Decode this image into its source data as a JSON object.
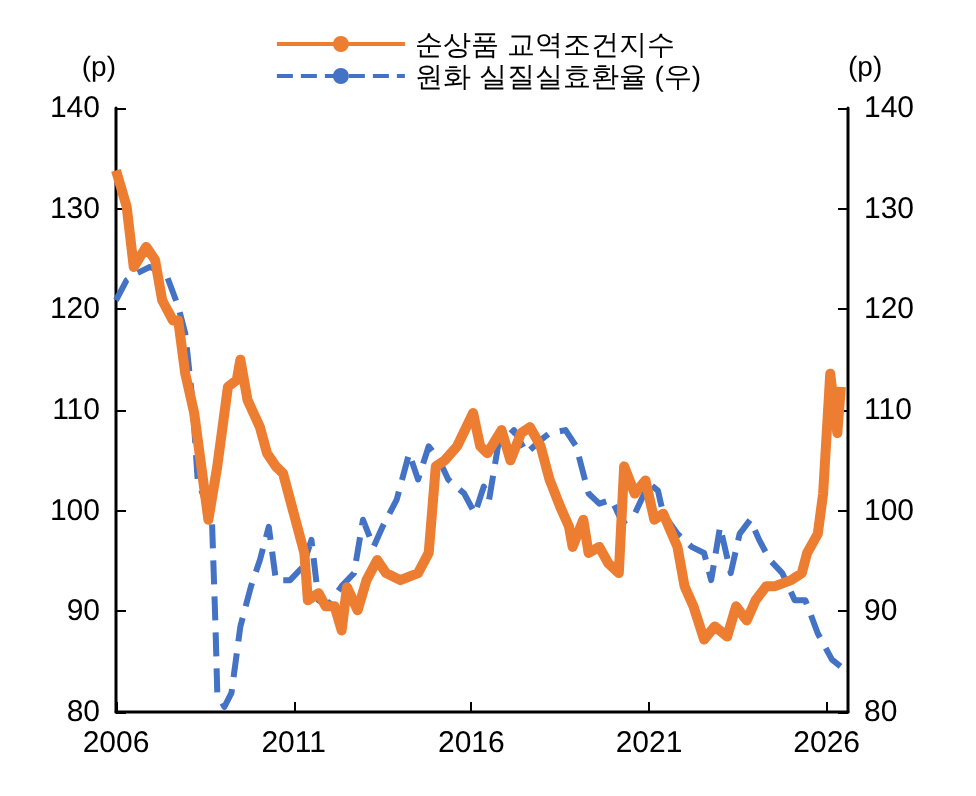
{
  "chart_data": {
    "type": "line",
    "ylabel": "(p)",
    "y2label": "(p)",
    "xlim": [
      2006,
      2026.6
    ],
    "xticks": [
      2006,
      2011,
      2016,
      2021,
      2026
    ],
    "ylim": [
      80,
      140
    ],
    "yticks": [
      80,
      90,
      100,
      110,
      120,
      130,
      140
    ],
    "y2lim": [
      80,
      140
    ],
    "y2ticks": [
      80,
      90,
      100,
      110,
      120,
      130,
      140
    ],
    "legend": "top",
    "grid": false,
    "marker": "none",
    "series": [
      {
        "name": "순상품 교역조건지수",
        "color": "#ed7d31",
        "line_style": "solid",
        "x": [
          2006.0,
          2006.3,
          2006.5,
          2006.85,
          2007.1,
          2007.3,
          2007.6,
          2007.75,
          2007.95,
          2008.2,
          2008.6,
          2008.85,
          2009.15,
          2009.4,
          2009.5,
          2009.7,
          2010.05,
          2010.25,
          2010.5,
          2010.7,
          2011.05,
          2011.3,
          2011.4,
          2011.7,
          2011.9,
          2012.15,
          2012.35,
          2012.5,
          2012.8,
          2013.05,
          2013.35,
          2013.6,
          2014.0,
          2014.5,
          2014.8,
          2015.0,
          2015.25,
          2015.6,
          2016.05,
          2016.25,
          2016.45,
          2016.85,
          2017.1,
          2017.4,
          2017.65,
          2017.95,
          2018.2,
          2018.5,
          2018.75,
          2018.85,
          2019.15,
          2019.3,
          2019.6,
          2019.85,
          2020.15,
          2020.3,
          2020.6,
          2020.9,
          2021.15,
          2021.4,
          2021.8,
          2022.0,
          2022.25,
          2022.55,
          2022.85,
          2023.2,
          2023.45,
          2023.75,
          2024.0,
          2024.3,
          2024.55,
          2025.0,
          2025.3,
          2025.45,
          2025.75,
          2025.9,
          2026.1,
          2026.3,
          2026.4
        ],
        "values": [
          133.8,
          130.2,
          124.2,
          126.2,
          124.9,
          120.9,
          118.9,
          118.9,
          113.6,
          109.7,
          99.1,
          104.4,
          112.3,
          113.0,
          115.0,
          111.0,
          108.3,
          105.7,
          104.4,
          103.7,
          99.1,
          95.8,
          91.1,
          91.8,
          90.5,
          90.5,
          88.1,
          92.4,
          90.1,
          93.1,
          95.1,
          93.8,
          93.1,
          93.8,
          95.8,
          104.4,
          105.0,
          106.4,
          109.7,
          106.4,
          105.7,
          108.0,
          105.0,
          107.7,
          108.3,
          106.4,
          103.1,
          100.4,
          98.4,
          96.4,
          99.1,
          95.8,
          96.4,
          94.8,
          93.8,
          104.4,
          101.7,
          103.0,
          99.1,
          99.7,
          96.4,
          92.5,
          90.5,
          87.2,
          88.5,
          87.5,
          90.5,
          89.1,
          91.1,
          92.5,
          92.5,
          93.1,
          93.8,
          95.8,
          97.7,
          101.7,
          113.6,
          107.7,
          112.3
        ]
      },
      {
        "name": "원화 실질실효환율 (우)",
        "color": "#4472c4",
        "line_style": "dashed",
        "axis": "y2",
        "x": [
          2006.0,
          2006.3,
          2006.6,
          2006.95,
          2007.4,
          2007.75,
          2007.95,
          2008.15,
          2008.3,
          2008.5,
          2008.7,
          2008.8,
          2008.85,
          2009.05,
          2009.25,
          2009.5,
          2009.8,
          2010.05,
          2010.3,
          2010.5,
          2010.9,
          2011.25,
          2011.5,
          2011.7,
          2011.95,
          2012.35,
          2012.7,
          2012.95,
          2013.25,
          2013.5,
          2013.9,
          2014.25,
          2014.5,
          2014.8,
          2015.1,
          2015.35,
          2015.8,
          2016.1,
          2016.35,
          2016.5,
          2016.75,
          2017.2,
          2017.55,
          2017.95,
          2018.2,
          2018.65,
          2018.95,
          2019.3,
          2019.6,
          2019.95,
          2020.25,
          2020.6,
          2021.0,
          2021.25,
          2021.4,
          2021.8,
          2022.2,
          2022.55,
          2022.75,
          2023.0,
          2023.3,
          2023.55,
          2023.85,
          2024.1,
          2024.4,
          2024.75,
          2025.1,
          2025.4,
          2025.75,
          2026.15,
          2026.4
        ],
        "values": [
          120.9,
          122.9,
          123.6,
          124.2,
          123.6,
          120.3,
          117.6,
          111.0,
          103.0,
          101.1,
          99.1,
          88.5,
          81.9,
          80.5,
          81.9,
          88.5,
          92.5,
          95.1,
          98.4,
          93.1,
          93.1,
          94.4,
          97.1,
          91.1,
          90.5,
          92.5,
          93.8,
          99.1,
          96.4,
          98.4,
          101.1,
          105.7,
          103.1,
          106.4,
          105.0,
          103.1,
          101.7,
          99.7,
          102.4,
          101.1,
          106.4,
          108.0,
          105.7,
          107.0,
          107.7,
          108.0,
          106.4,
          101.7,
          100.7,
          101.1,
          98.8,
          99.7,
          102.7,
          102.0,
          99.7,
          97.7,
          96.4,
          95.8,
          93.1,
          98.4,
          93.8,
          97.7,
          99.1,
          97.1,
          95.1,
          93.8,
          91.1,
          91.1,
          87.8,
          85.2,
          84.5
        ]
      }
    ]
  }
}
